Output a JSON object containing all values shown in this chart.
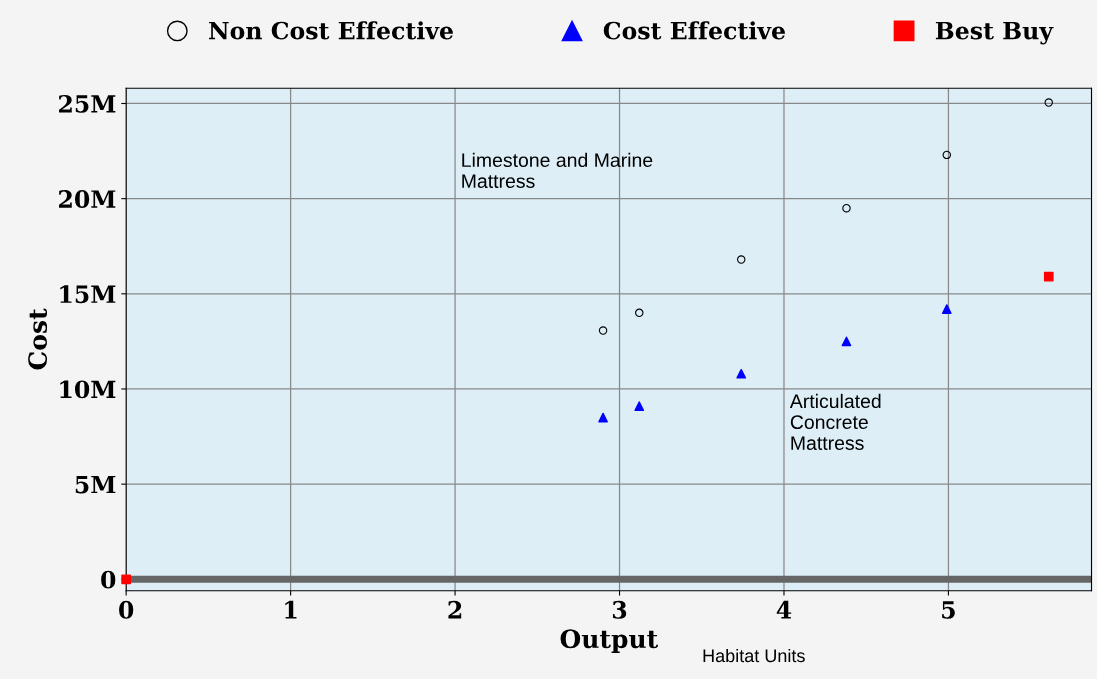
{
  "chart_data": {
    "type": "scatter",
    "xlabel": "Output",
    "ylabel": "Cost",
    "xlim": [
      0,
      5.87
    ],
    "ylim": [
      -0.6,
      25.8
    ],
    "xticks": [
      0,
      1,
      2,
      3,
      4,
      5
    ],
    "yticks": [
      {
        "value": 0,
        "label": "0"
      },
      {
        "value": 5,
        "label": "5M"
      },
      {
        "value": 10,
        "label": "10M"
      },
      {
        "value": 15,
        "label": "15M"
      },
      {
        "value": 20,
        "label": "20M"
      },
      {
        "value": 25,
        "label": "25M"
      }
    ],
    "grid": true,
    "legend": "top",
    "series": [
      {
        "name": "Non Cost Effective",
        "color": "#000000",
        "marker": "circle",
        "x": [
          2.9,
          3.12,
          3.74,
          4.38,
          4.99,
          5.61
        ],
        "values": [
          13.07,
          14.0,
          16.8,
          19.5,
          22.3,
          25.05
        ]
      },
      {
        "name": "Cost Effective",
        "color": "#0000ff",
        "marker": "triangle",
        "x": [
          2.9,
          3.12,
          3.74,
          4.38,
          4.99
        ],
        "values": [
          8.5,
          9.1,
          10.8,
          12.5,
          14.2
        ]
      },
      {
        "name": "Best Buy",
        "color": "#ff0000",
        "marker": "square",
        "x": [
          0,
          5.61
        ],
        "values": [
          0,
          15.9
        ]
      }
    ],
    "annotations": [
      "Limestone and Marine\nMattress",
      "Articulated\nConcrete\nMattress",
      "Habitat Units"
    ]
  }
}
